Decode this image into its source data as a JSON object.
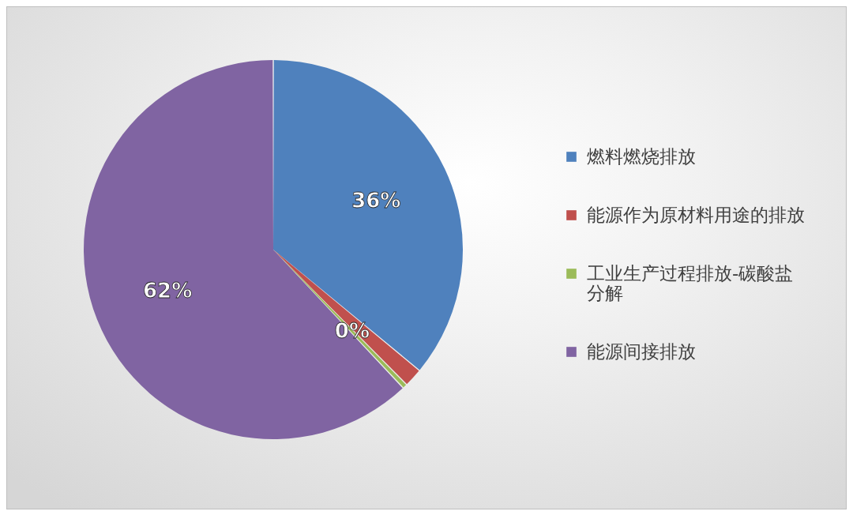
{
  "chart_data": {
    "type": "pie",
    "categories": [
      "燃料燃烧排放",
      "能源作为原材料用途的排放",
      "工业生产过程排放-碳酸盐分解",
      "能源间接排放"
    ],
    "values": [
      36,
      1.6,
      0.4,
      62
    ],
    "colors": [
      "#4f81bd",
      "#c0504d",
      "#9bbb59",
      "#8064a2"
    ],
    "value_labels": [
      "36%",
      null,
      "0%",
      "62%"
    ],
    "legend": "right"
  }
}
